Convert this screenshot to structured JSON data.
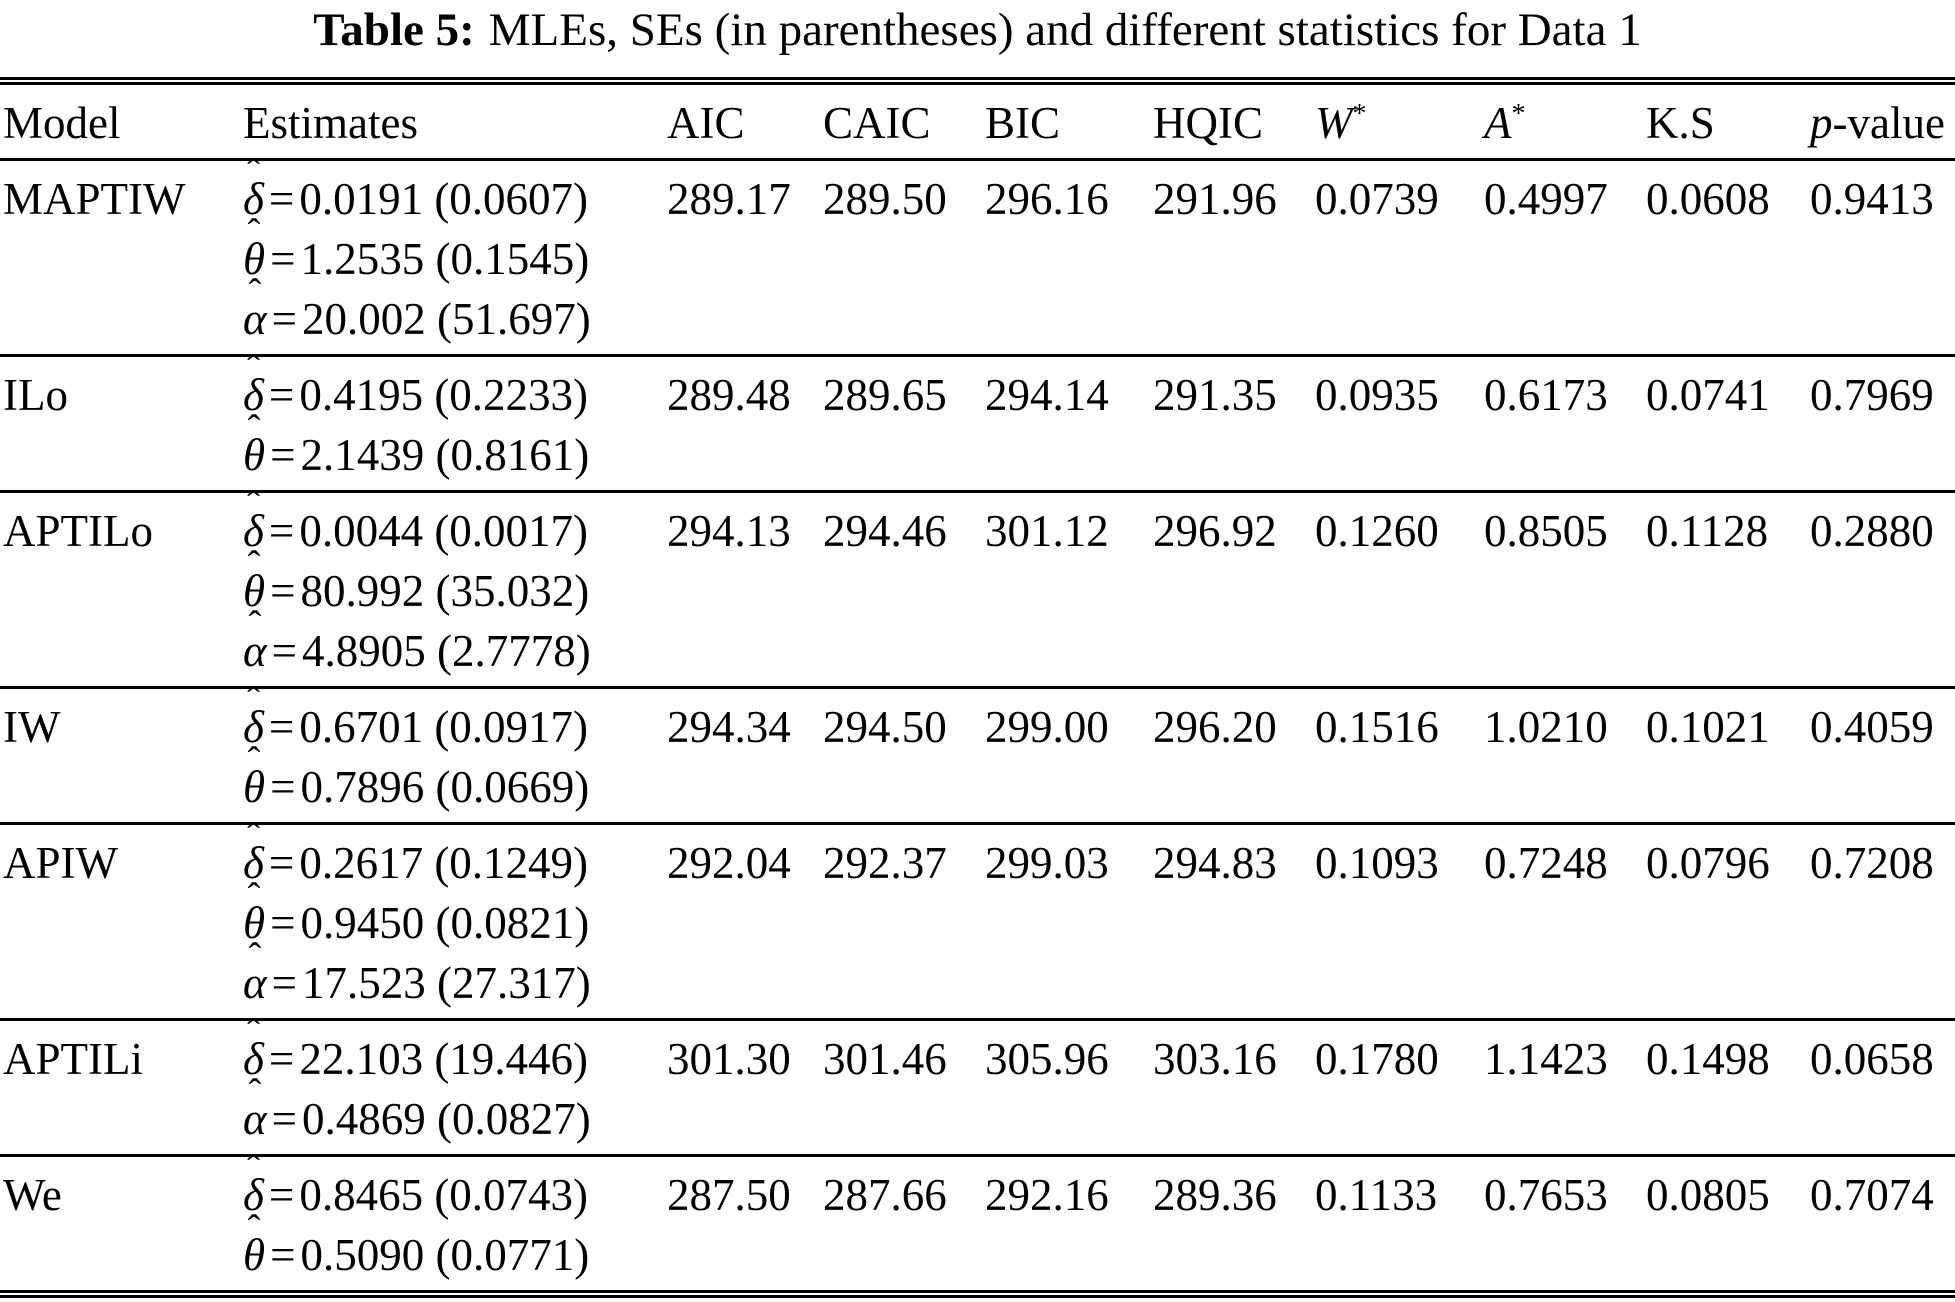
{
  "title": {
    "label": "Table 5:",
    "text": "MLEs, SEs (in parentheses) and different statistics for Data 1"
  },
  "notation": {
    "hat": "ˆ"
  },
  "table": {
    "header": {
      "model": "Model",
      "estimates": "Estimates",
      "aic": "AIC",
      "caic": "CAIC",
      "bic": "BIC",
      "hqic": "HQIC",
      "w_letter": "W",
      "w_star": "*",
      "a_letter": "A",
      "a_star": "*",
      "ks": "K.S",
      "p_letter": "p",
      "p_rest": "-value"
    },
    "stat_keys": [
      "aic",
      "caic",
      "bic",
      "hqic",
      "wstar",
      "astar",
      "ks",
      "pvalue"
    ],
    "rows": [
      {
        "model": "MAPTIW",
        "estimates": [
          {
            "symbol": "δ",
            "eq": "=",
            "value": "0.0191",
            "se": "(0.0607)"
          },
          {
            "symbol": "θ",
            "eq": "=",
            "value": "1.2535",
            "se": "(0.1545)"
          },
          {
            "symbol": "α",
            "eq": "=",
            "value": "20.002",
            "se": "(51.697)"
          }
        ],
        "aic": "289.17",
        "caic": "289.50",
        "bic": "296.16",
        "hqic": "291.96",
        "wstar": "0.0739",
        "astar": "0.4997",
        "ks": "0.0608",
        "pvalue": "0.9413"
      },
      {
        "model": "ILo",
        "estimates": [
          {
            "symbol": "δ",
            "eq": "=",
            "value": "0.4195",
            "se": "(0.2233)"
          },
          {
            "symbol": "θ",
            "eq": "=",
            "value": "2.1439",
            "se": "(0.8161)"
          }
        ],
        "aic": "289.48",
        "caic": "289.65",
        "bic": "294.14",
        "hqic": "291.35",
        "wstar": "0.0935",
        "astar": "0.6173",
        "ks": "0.0741",
        "pvalue": "0.7969"
      },
      {
        "model": "APTILo",
        "estimates": [
          {
            "symbol": "δ",
            "eq": "=",
            "value": "0.0044",
            "se": "(0.0017)"
          },
          {
            "symbol": "θ",
            "eq": "=",
            "value": "80.992",
            "se": "(35.032)"
          },
          {
            "symbol": "α",
            "eq": "=",
            "value": "4.8905",
            "se": "(2.7778)"
          }
        ],
        "aic": "294.13",
        "caic": "294.46",
        "bic": "301.12",
        "hqic": "296.92",
        "wstar": "0.1260",
        "astar": "0.8505",
        "ks": "0.1128",
        "pvalue": "0.2880"
      },
      {
        "model": "IW",
        "estimates": [
          {
            "symbol": "δ",
            "eq": "=",
            "value": "0.6701",
            "se": "(0.0917)"
          },
          {
            "symbol": "θ",
            "eq": "=",
            "value": "0.7896",
            "se": "(0.0669)"
          }
        ],
        "aic": "294.34",
        "caic": "294.50",
        "bic": "299.00",
        "hqic": "296.20",
        "wstar": "0.1516",
        "astar": "1.0210",
        "ks": "0.1021",
        "pvalue": "0.4059"
      },
      {
        "model": "APIW",
        "estimates": [
          {
            "symbol": "δ",
            "eq": "=",
            "value": "0.2617",
            "se": "(0.1249)"
          },
          {
            "symbol": "θ",
            "eq": "=",
            "value": "0.9450",
            "se": "(0.0821)"
          },
          {
            "symbol": "α",
            "eq": "=",
            "value": "17.523",
            "se": "(27.317)"
          }
        ],
        "aic": "292.04",
        "caic": "292.37",
        "bic": "299.03",
        "hqic": "294.83",
        "wstar": "0.1093",
        "astar": "0.7248",
        "ks": "0.0796",
        "pvalue": "0.7208"
      },
      {
        "model": "APTILi",
        "estimates": [
          {
            "symbol": "δ",
            "eq": "=",
            "value": "22.103",
            "se": "(19.446)"
          },
          {
            "symbol": "α",
            "eq": "=",
            "value": "0.4869",
            "se": "(0.0827)"
          }
        ],
        "aic": "301.30",
        "caic": "301.46",
        "bic": "305.96",
        "hqic": "303.16",
        "wstar": "0.1780",
        "astar": "1.1423",
        "ks": "0.1498",
        "pvalue": "0.0658"
      },
      {
        "model": "We",
        "estimates": [
          {
            "symbol": "δ",
            "eq": "=",
            "value": "0.8465",
            "se": "(0.0743)"
          },
          {
            "symbol": "θ",
            "eq": "=",
            "value": "0.5090",
            "se": "(0.0771)"
          }
        ],
        "aic": "287.50",
        "caic": "287.66",
        "bic": "292.16",
        "hqic": "289.36",
        "wstar": "0.1133",
        "astar": "0.7653",
        "ks": "0.0805",
        "pvalue": "0.7074"
      }
    ]
  }
}
